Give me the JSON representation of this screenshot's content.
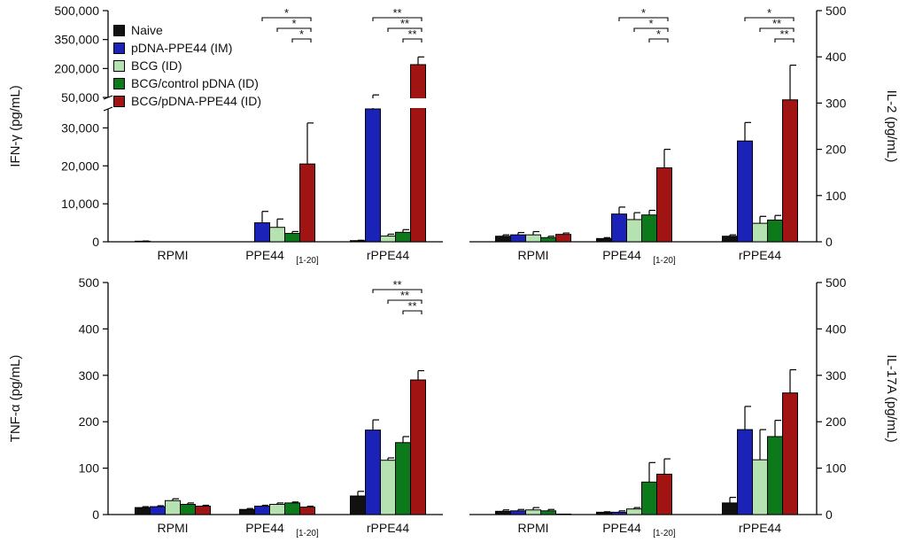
{
  "legend": [
    {
      "name": "Naive",
      "color": "#111111"
    },
    {
      "name": "pDNA-PPE44 (IM)",
      "color": "#1a22b8"
    },
    {
      "name": "BCG (ID)",
      "color": "#b5e2b0"
    },
    {
      "name": "BCG/control pDNA (ID)",
      "color": "#0c7a1a"
    },
    {
      "name": "BCG/pDNA-PPE44 (ID)",
      "color": "#a11414"
    }
  ],
  "chart_data": [
    {
      "id": "ifn",
      "type": "bar",
      "ylabel": "IFN-γ (pg/mL)",
      "categories": [
        "RPMI",
        "PPE44",
        "rPPE44"
      ],
      "category_subscripts": [
        "",
        "[1-20]",
        ""
      ],
      "broken_axis": true,
      "lower_ylim": [
        0,
        35000
      ],
      "lower_ticks": [
        0,
        10000,
        20000,
        30000
      ],
      "lower_tick_labels": [
        "0",
        "10,000",
        "20,000",
        "30,000"
      ],
      "upper_ylim": [
        50000,
        500000
      ],
      "upper_ticks": [
        50000,
        200000,
        350000,
        500000
      ],
      "upper_tick_labels": [
        "50,000",
        "200,000",
        "350,000",
        "500,000"
      ],
      "series": [
        {
          "name": "Naive",
          "values": [
            150,
            0,
            300
          ],
          "errors": [
            50,
            0,
            100
          ]
        },
        {
          "name": "pDNA-PPE44 (IM)",
          "values": [
            0,
            5000,
            48000
          ],
          "errors": [
            0,
            3000,
            15000
          ]
        },
        {
          "name": "BCG (ID)",
          "values": [
            0,
            3800,
            1500
          ],
          "errors": [
            0,
            2200,
            500
          ]
        },
        {
          "name": "BCG/control pDNA (ID)",
          "values": [
            0,
            2200,
            2500
          ],
          "errors": [
            0,
            500,
            700
          ]
        },
        {
          "name": "BCG/pDNA-PPE44 (ID)",
          "values": [
            0,
            20500,
            220000
          ],
          "errors": [
            0,
            10800,
            40000
          ]
        }
      ],
      "significance": [
        {
          "category": 1,
          "from": 1,
          "to": 4,
          "label": "*"
        },
        {
          "category": 1,
          "from": 2,
          "to": 4,
          "label": "*"
        },
        {
          "category": 1,
          "from": 3,
          "to": 4,
          "label": "*"
        },
        {
          "category": 2,
          "from": 1,
          "to": 4,
          "label": "**"
        },
        {
          "category": 2,
          "from": 2,
          "to": 4,
          "label": "**"
        },
        {
          "category": 2,
          "from": 3,
          "to": 4,
          "label": "**"
        }
      ]
    },
    {
      "id": "il2",
      "type": "bar",
      "ylabel": "IL-2 (pg/mL)",
      "ylabel_side": "right",
      "categories": [
        "RPMI",
        "PPE44",
        "rPPE44"
      ],
      "category_subscripts": [
        "",
        "[1-20]",
        ""
      ],
      "ylim": [
        0,
        500
      ],
      "ticks": [
        0,
        100,
        200,
        300,
        400,
        500
      ],
      "series": [
        {
          "name": "Naive",
          "values": [
            12,
            7,
            12
          ],
          "errors": [
            3,
            2,
            3
          ]
        },
        {
          "name": "pDNA-PPE44 (IM)",
          "values": [
            15,
            60,
            218
          ],
          "errors": [
            5,
            15,
            40
          ]
        },
        {
          "name": "BCG (ID)",
          "values": [
            15,
            48,
            40
          ],
          "errors": [
            7,
            15,
            15
          ]
        },
        {
          "name": "BCG/control pDNA (ID)",
          "values": [
            9,
            58,
            47
          ],
          "errors": [
            3,
            10,
            10
          ]
        },
        {
          "name": "BCG/pDNA-PPE44 (ID)",
          "values": [
            16,
            160,
            307
          ],
          "errors": [
            3,
            40,
            75
          ]
        }
      ],
      "significance": [
        {
          "category": 1,
          "from": 1,
          "to": 4,
          "label": "*"
        },
        {
          "category": 1,
          "from": 2,
          "to": 4,
          "label": "*"
        },
        {
          "category": 1,
          "from": 3,
          "to": 4,
          "label": "*"
        },
        {
          "category": 2,
          "from": 1,
          "to": 4,
          "label": "*"
        },
        {
          "category": 2,
          "from": 2,
          "to": 4,
          "label": "**"
        },
        {
          "category": 2,
          "from": 3,
          "to": 4,
          "label": "**"
        }
      ]
    },
    {
      "id": "tnf",
      "type": "bar",
      "ylabel": "TNF-α (pg/mL)",
      "categories": [
        "RPMI",
        "PPE44",
        "rPPE44"
      ],
      "category_subscripts": [
        "",
        "[1-20]",
        ""
      ],
      "ylim": [
        0,
        500
      ],
      "ticks": [
        0,
        100,
        200,
        300,
        400,
        500
      ],
      "series": [
        {
          "name": "Naive",
          "values": [
            15,
            11,
            40
          ],
          "errors": [
            2,
            2,
            10
          ]
        },
        {
          "name": "pDNA-PPE44 (IM)",
          "values": [
            17,
            18,
            182
          ],
          "errors": [
            2,
            2,
            22
          ]
        },
        {
          "name": "BCG (ID)",
          "values": [
            30,
            22,
            117
          ],
          "errors": [
            4,
            3,
            5
          ]
        },
        {
          "name": "BCG/control pDNA (ID)",
          "values": [
            22,
            25,
            155
          ],
          "errors": [
            3,
            2,
            13
          ]
        },
        {
          "name": "BCG/pDNA-PPE44 (ID)",
          "values": [
            18,
            16,
            290
          ],
          "errors": [
            2,
            2,
            20
          ]
        }
      ],
      "significance": [
        {
          "category": 2,
          "from": 1,
          "to": 4,
          "label": "**"
        },
        {
          "category": 2,
          "from": 2,
          "to": 4,
          "label": "**"
        },
        {
          "category": 2,
          "from": 3,
          "to": 4,
          "label": "**"
        }
      ]
    },
    {
      "id": "il17",
      "type": "bar",
      "ylabel": "IL-17A (pg/mL)",
      "ylabel_side": "right",
      "categories": [
        "RPMI",
        "PPE44",
        "rPPE44"
      ],
      "category_subscripts": [
        "",
        "[1-20]",
        ""
      ],
      "ylim": [
        0,
        500
      ],
      "ticks": [
        0,
        100,
        200,
        300,
        400,
        500
      ],
      "series": [
        {
          "name": "Naive",
          "values": [
            7,
            5,
            25
          ],
          "errors": [
            3,
            1,
            12
          ]
        },
        {
          "name": "pDNA-PPE44 (IM)",
          "values": [
            8,
            5,
            183
          ],
          "errors": [
            3,
            3,
            50
          ]
        },
        {
          "name": "BCG (ID)",
          "values": [
            10,
            12,
            118
          ],
          "errors": [
            5,
            3,
            65
          ]
        },
        {
          "name": "BCG/control pDNA (ID)",
          "values": [
            8,
            70,
            168
          ],
          "errors": [
            3,
            42,
            35
          ]
        },
        {
          "name": "BCG/pDNA-PPE44 (ID)",
          "values": [
            1,
            87,
            262
          ],
          "errors": [
            0,
            33,
            50
          ]
        }
      ],
      "significance": []
    }
  ]
}
